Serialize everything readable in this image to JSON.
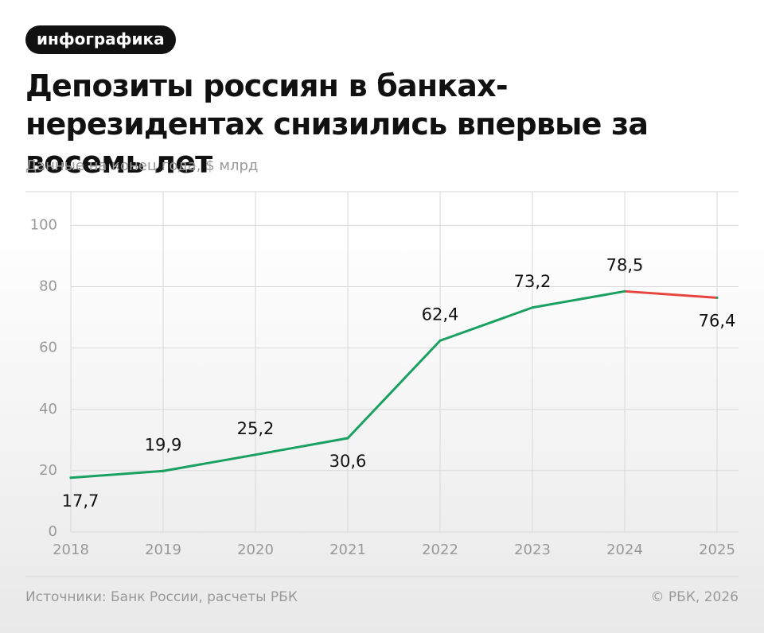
{
  "tag": "инфографика",
  "chart_data": {
    "type": "line",
    "title": "Депозиты россиян в банках-нерезидентах снизились впервые за восемь лет",
    "subtitle": "Данные на конец года, $ млрд",
    "categories": [
      "2018",
      "2019",
      "2020",
      "2021",
      "2022",
      "2023",
      "2024",
      "2025"
    ],
    "values": [
      17.7,
      19.9,
      25.2,
      30.6,
      62.4,
      73.2,
      78.5,
      76.4
    ],
    "value_labels": [
      "17,7",
      "19,9",
      "25,2",
      "30,6",
      "62,4",
      "73,2",
      "78,5",
      "76,4"
    ],
    "color": "#1aa161",
    "decline_color": "#e8443f",
    "ylim": [
      0,
      111
    ],
    "yticks": [
      0,
      20,
      40,
      60,
      80,
      100
    ],
    "grid": true
  },
  "footer": {
    "source": "Источники: Банк России, расчеты РБК",
    "copyright": "© РБК, 2026"
  }
}
